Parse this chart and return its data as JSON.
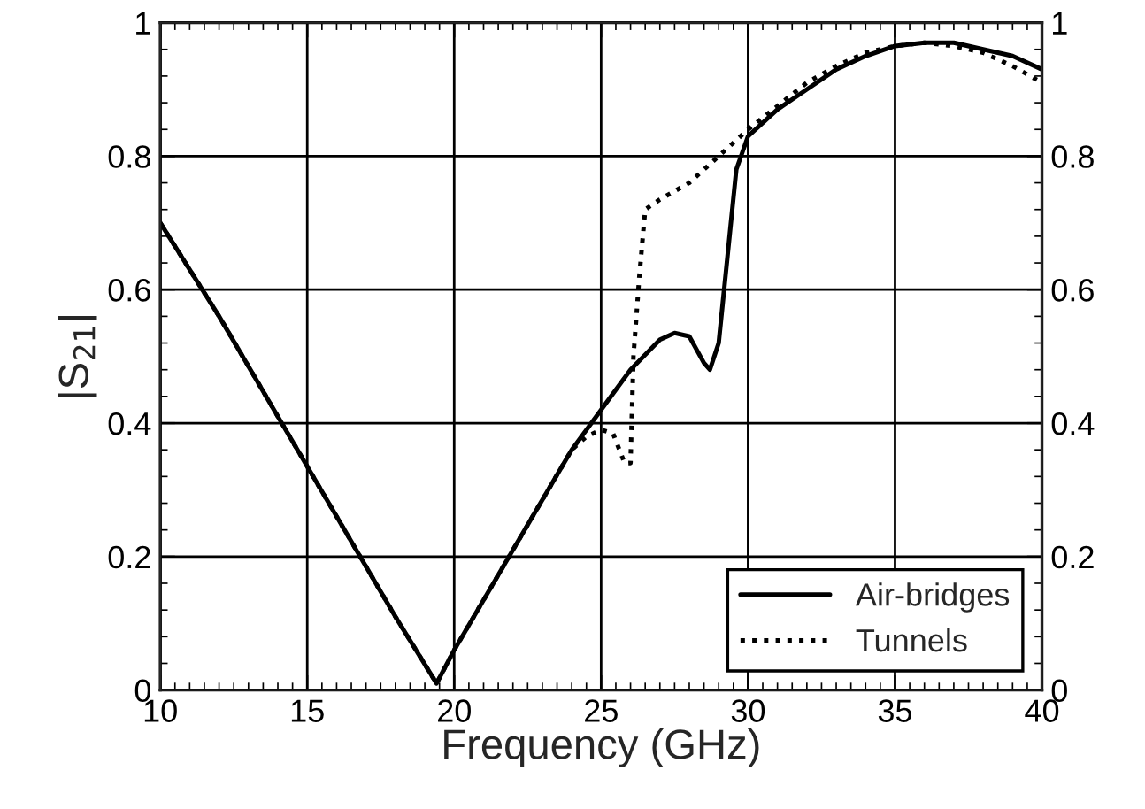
{
  "chart_data": {
    "type": "line",
    "xlabel": "Frequency (GHz)",
    "ylabel": "|S$_{21}$|",
    "xlim": [
      10,
      40
    ],
    "xticks": [
      10,
      15,
      20,
      25,
      30,
      35,
      40
    ],
    "ylim": [
      0,
      1
    ],
    "yticks": [
      0,
      0.2,
      0.4,
      0.6,
      0.8,
      1
    ],
    "y2lim": [
      0,
      1
    ],
    "y2ticks": [
      0,
      0.2,
      0.4,
      0.6,
      0.8,
      1
    ],
    "grid": true,
    "legend": "bottom right",
    "series": [
      {
        "name": "Air-bridges",
        "color": "#000000",
        "line_style": "solid",
        "x": [
          10,
          12,
          14,
          16,
          18,
          19.4,
          20,
          22,
          24,
          25,
          26,
          27,
          27.5,
          28,
          28.5,
          28.7,
          29,
          29.3,
          29.6,
          30,
          31,
          32,
          33,
          34,
          35,
          36,
          37,
          38,
          39,
          40
        ],
        "values": [
          0.7,
          0.56,
          0.41,
          0.26,
          0.11,
          0.01,
          0.06,
          0.21,
          0.36,
          0.42,
          0.48,
          0.525,
          0.535,
          0.53,
          0.49,
          0.48,
          0.52,
          0.65,
          0.78,
          0.83,
          0.87,
          0.9,
          0.93,
          0.95,
          0.965,
          0.97,
          0.97,
          0.96,
          0.95,
          0.93
        ]
      },
      {
        "name": "Tunnels",
        "color": "#000000",
        "line_style": "dotted",
        "x": [
          10,
          12,
          14,
          16,
          18,
          19.4,
          20,
          22,
          24,
          24.5,
          25,
          25.4,
          25.8,
          26,
          26.1,
          26.3,
          26.5,
          27,
          28,
          29,
          30,
          31,
          32,
          33,
          34,
          35,
          36,
          37,
          38,
          39,
          40
        ],
        "values": [
          0.7,
          0.56,
          0.41,
          0.26,
          0.11,
          0.01,
          0.06,
          0.21,
          0.36,
          0.38,
          0.39,
          0.385,
          0.34,
          0.34,
          0.5,
          0.62,
          0.72,
          0.735,
          0.76,
          0.8,
          0.84,
          0.875,
          0.91,
          0.935,
          0.955,
          0.965,
          0.97,
          0.965,
          0.955,
          0.935,
          0.91
        ]
      }
    ]
  }
}
